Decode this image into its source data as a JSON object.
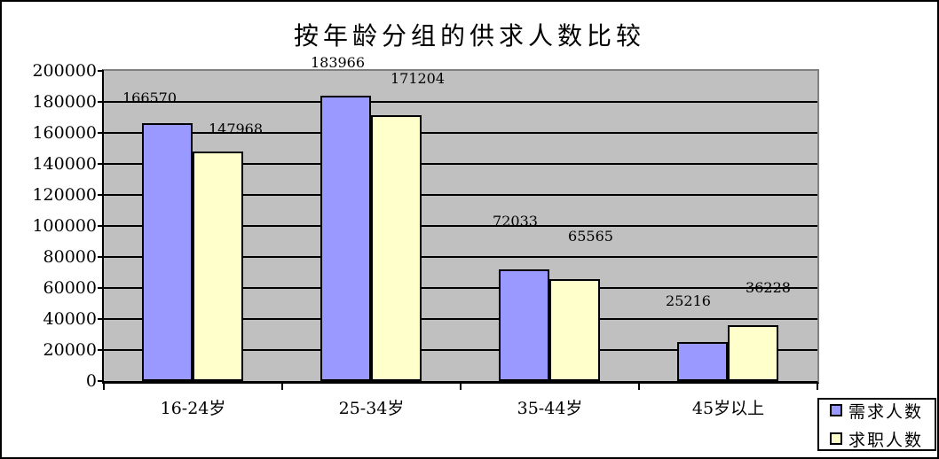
{
  "chart_data": {
    "type": "bar",
    "title": "按年龄分组的供求人数比较",
    "categories": [
      "16-24岁",
      "25-34岁",
      "35-44岁",
      "45岁以上"
    ],
    "series": [
      {
        "name": "需求人数",
        "color": "#9999ff",
        "values": [
          166570,
          183966,
          72033,
          25216
        ]
      },
      {
        "name": "求职人数",
        "color": "#ffffcc",
        "values": [
          147968,
          171204,
          65565,
          36228
        ]
      }
    ],
    "data_labels_shown": true,
    "xlabel": "",
    "ylabel": "",
    "ylim": [
      0,
      200000
    ],
    "y_tick_interval": 20000,
    "y_ticks": [
      0,
      20000,
      40000,
      60000,
      80000,
      100000,
      120000,
      140000,
      160000,
      180000,
      200000
    ],
    "grid": "horizontal",
    "gridline_color": "#000000",
    "plot_bg": "#c0c0c0",
    "legend_position": "bottom-right"
  }
}
